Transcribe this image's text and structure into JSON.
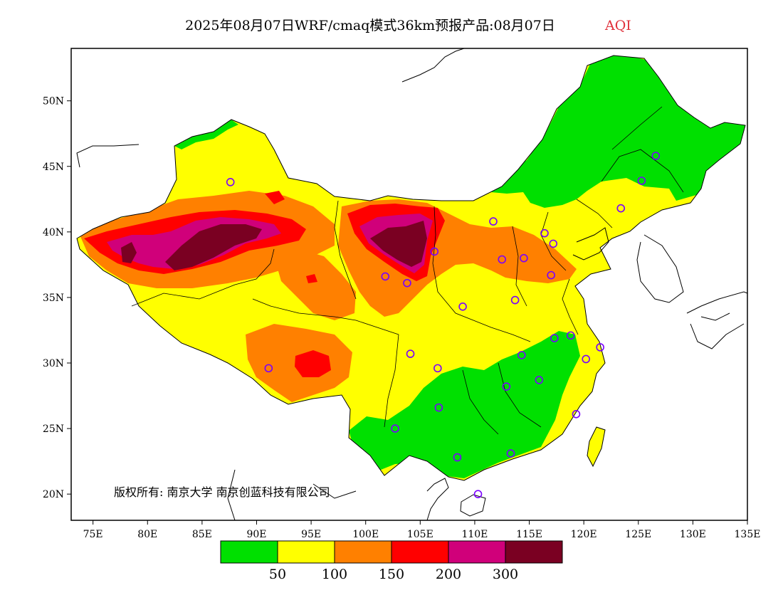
{
  "title": {
    "main": "2025年08月07日WRF/cmaq模式36km预报产品:08月07日",
    "variable": "AQI"
  },
  "map": {
    "lon_range": [
      73,
      135
    ],
    "lat_range": [
      18,
      54
    ],
    "x_ticks": [
      "75E",
      "80E",
      "85E",
      "90E",
      "95E",
      "100E",
      "105E",
      "110E",
      "115E",
      "120E",
      "125E",
      "130E",
      "135E"
    ],
    "y_ticks": [
      "50N",
      "45N",
      "40N",
      "35N",
      "30N",
      "25N",
      "20N"
    ],
    "copyright": "版权所有: 南京大学  南京创蓝科技有限公司"
  },
  "legend": {
    "colors": [
      "#00e000",
      "#ffff00",
      "#ff8000",
      "#ff0000",
      "#d0007a",
      "#7a0022"
    ],
    "labels": [
      "50",
      "100",
      "150",
      "200",
      "300"
    ]
  },
  "stations": [
    [
      87.6,
      43.8
    ],
    [
      91.1,
      29.6
    ],
    [
      101.8,
      36.6
    ],
    [
      103.8,
      36.1
    ],
    [
      106.3,
      38.5
    ],
    [
      104.1,
      30.7
    ],
    [
      106.6,
      29.6
    ],
    [
      102.7,
      25.0
    ],
    [
      106.7,
      26.6
    ],
    [
      108.4,
      22.8
    ],
    [
      110.3,
      20.0
    ],
    [
      108.9,
      34.3
    ],
    [
      111.7,
      40.8
    ],
    [
      112.5,
      37.9
    ],
    [
      113.7,
      34.8
    ],
    [
      114.5,
      38.0
    ],
    [
      116.4,
      39.9
    ],
    [
      117.2,
      39.1
    ],
    [
      117.0,
      36.7
    ],
    [
      117.3,
      31.9
    ],
    [
      118.8,
      32.1
    ],
    [
      120.2,
      30.3
    ],
    [
      121.5,
      31.2
    ],
    [
      119.3,
      26.1
    ],
    [
      113.3,
      23.1
    ],
    [
      114.3,
      30.6
    ],
    [
      112.9,
      28.2
    ],
    [
      115.9,
      28.7
    ],
    [
      123.4,
      41.8
    ],
    [
      125.3,
      43.9
    ],
    [
      126.6,
      45.8
    ]
  ]
}
